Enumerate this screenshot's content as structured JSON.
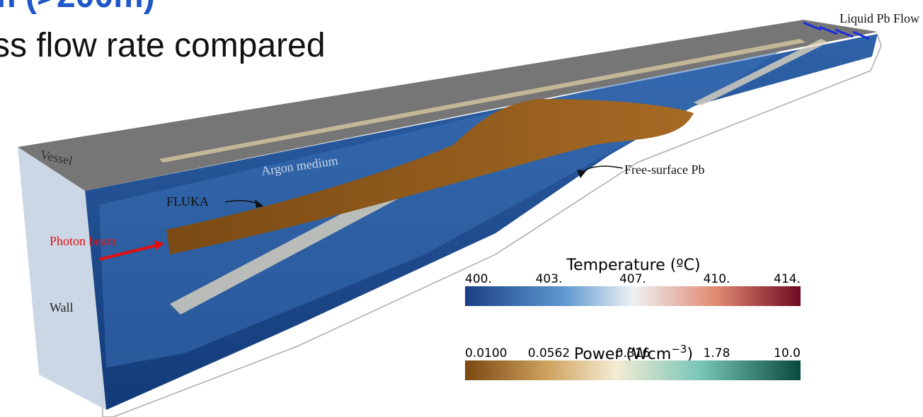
{
  "header": {
    "title_fragment": "m (>200m)",
    "subtitle_fragment": "ss flow rate compared"
  },
  "labels": {
    "liquid_flow": "Liquid Pb Flow",
    "vessel": "Vessel",
    "argon": "Argon medium",
    "free_surface": "Free-surface Pb",
    "fluka": "FLUKA",
    "photon_beam": "Photon beam",
    "wall": "Wall"
  },
  "colorbars": [
    {
      "title": "Temperature (ºC)",
      "ticks": [
        "400.",
        "403.",
        "407.",
        "410.",
        "414."
      ]
    },
    {
      "title": "Power (Wcm",
      "superscript": "−3",
      "title_end": ")",
      "ticks": [
        "0.0100",
        "0.0562",
        "0.316",
        "1.78",
        "10.0"
      ]
    }
  ]
}
